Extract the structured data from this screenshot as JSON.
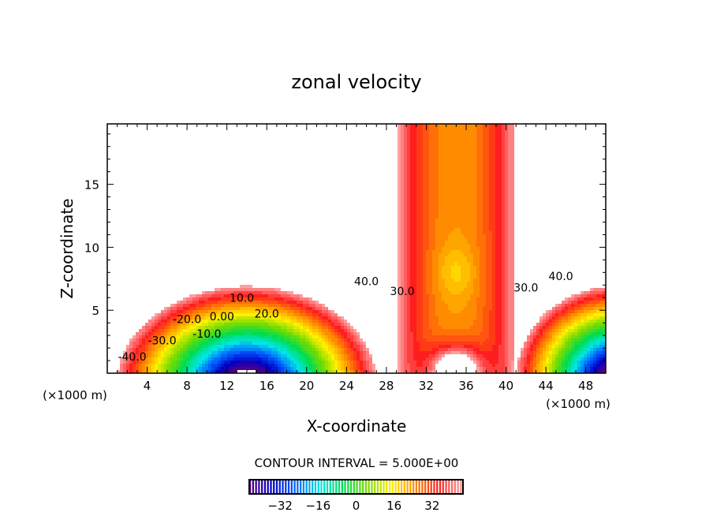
{
  "chart_data": {
    "type": "heatmap",
    "subtype": "filled-contour",
    "title": "zonal velocity",
    "xlabel": "X-coordinate",
    "ylabel": "Z-coordinate",
    "x_units": "(×1000 m)",
    "z_units": "(×1000 m)",
    "xlim": [
      0,
      50
    ],
    "ylim": [
      0,
      19.8
    ],
    "xticks": [
      4,
      8,
      12,
      16,
      20,
      24,
      28,
      32,
      36,
      40,
      44,
      48
    ],
    "yticks": [
      5,
      10,
      15
    ],
    "contour_interval_label": "CONTOUR INTERVAL = 5.000E+00",
    "contour_interval": 5,
    "contour_labels": [
      {
        "text": "-40.0",
        "x": 2.5,
        "z": 1.0
      },
      {
        "text": "-30.0",
        "x": 5.5,
        "z": 2.3
      },
      {
        "text": "-20.0",
        "x": 8.0,
        "z": 3.1
      },
      {
        "text": "-10.0",
        "x": 10.0,
        "z": 3.7
      },
      {
        "text": "0.00",
        "x": 11.5,
        "z": 4.2
      },
      {
        "text": "10.0",
        "x": 13.5,
        "z": 4.8
      },
      {
        "text": "20.0",
        "x": 16.0,
        "z": 5.3
      },
      {
        "text": "30.0",
        "x": 29.6,
        "z": 6.2
      },
      {
        "text": "40.0",
        "x": 26.0,
        "z": 7.0
      },
      {
        "text": "30.0",
        "x": 42.0,
        "z": 6.5
      },
      {
        "text": "40.0",
        "x": 45.5,
        "z": 7.4
      }
    ],
    "colorbar": {
      "min": -45,
      "max": 45,
      "ticks": [
        -32,
        -16,
        0,
        16,
        32
      ]
    },
    "colors": {
      "low": "#5a0080",
      "high": "#ff9c9c"
    }
  }
}
